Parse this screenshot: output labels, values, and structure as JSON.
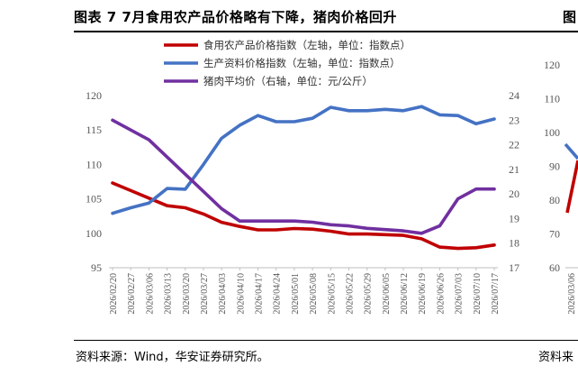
{
  "header": {
    "title": "图表 7 7月食用农产品价格略有下降，猪肉价格回升",
    "title2_fragment": "图"
  },
  "footer": {
    "source": "资料来源：Wind，华安证券研究所。",
    "source2_fragment": "资料来"
  },
  "colors": {
    "red": "#C00000",
    "blue": "#4472C4",
    "purple": "#7030A0"
  },
  "chart_data": [
    {
      "type": "line",
      "title": "",
      "categories": [
        "2026/02/20",
        "2026/02/27",
        "2026/03/06",
        "2026/03/13",
        "2026/03/20",
        "2026/03/27",
        "2026/04/03",
        "2026/04/10",
        "2026/04/17",
        "2026/04/24",
        "2026/05/01",
        "2026/05/08",
        "2026/05/15",
        "2026/05/22",
        "2026/05/29",
        "2026/06/05",
        "2026/06/12",
        "2026/06/19",
        "2026/06/26",
        "2026/07/03",
        "2026/07/10",
        "2026/07/17"
      ],
      "series": [
        {
          "name": "食用农产品价格指数（左轴，单位：指数点）",
          "axis": "left",
          "color": "#C00000",
          "values": [
            107.3,
            106.2,
            105.1,
            104.0,
            103.7,
            102.8,
            101.6,
            101.0,
            100.5,
            100.5,
            100.7,
            100.6,
            100.3,
            99.9,
            99.9,
            99.8,
            99.7,
            99.2,
            98.0,
            97.8,
            97.9,
            98.3
          ]
        },
        {
          "name": "生产资料价格指数（左轴，单位：指数点）",
          "axis": "left",
          "color": "#4472C4",
          "values": [
            102.9,
            103.7,
            104.4,
            106.5,
            106.4,
            110.0,
            113.8,
            115.7,
            117.1,
            116.2,
            116.2,
            116.7,
            118.3,
            117.8,
            117.8,
            118.0,
            117.8,
            118.4,
            117.2,
            117.1,
            115.9,
            116.6
          ]
        },
        {
          "name": "猪肉平均价（右轴，单位：元/公斤）",
          "axis": "right",
          "color": "#7030A0",
          "values": [
            23.0,
            22.6,
            22.2,
            21.5,
            20.8,
            20.1,
            19.4,
            18.9,
            18.9,
            18.9,
            18.9,
            18.85,
            18.75,
            18.7,
            18.6,
            18.55,
            18.5,
            18.4,
            18.7,
            19.8,
            20.2,
            20.2
          ]
        }
      ],
      "yticks_left": [
        "95",
        "100",
        "105",
        "110",
        "115",
        "120"
      ],
      "ylim_left": [
        95,
        120
      ],
      "yticks_right": [
        "17",
        "18",
        "19",
        "20",
        "21",
        "22",
        "23",
        "24"
      ],
      "ylim_right": [
        17,
        24
      ],
      "legend": "top-right",
      "grid": false
    },
    {
      "type": "line",
      "title": "",
      "partial": true,
      "categories": [
        "2026/03/06"
      ],
      "yticks_left": [
        "60",
        "70",
        "80",
        "90",
        "100",
        "110",
        "120"
      ],
      "ylim_left": [
        60,
        120
      ]
    }
  ]
}
